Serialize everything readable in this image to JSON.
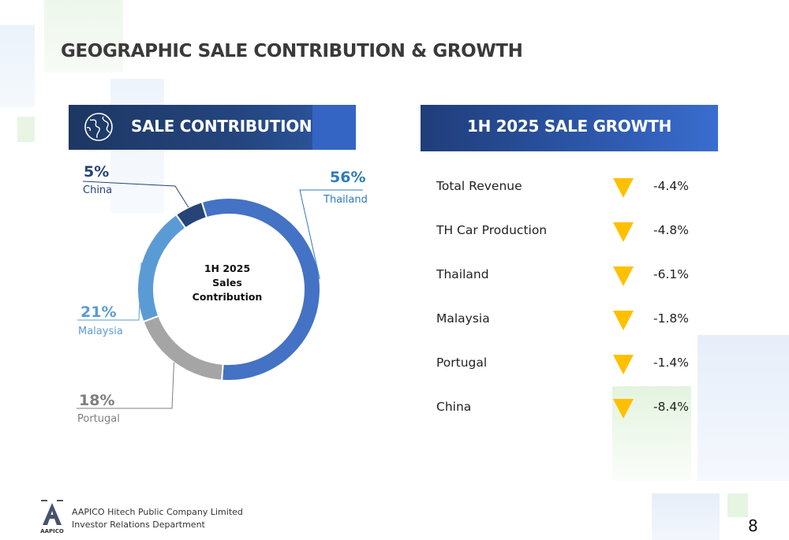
{
  "title": "GEOGRAPHIC SALE CONTRIBUTION & GROWTH",
  "left_panel": {
    "title": "SALE CONTRIBUTION",
    "icon": "globe-icon"
  },
  "right_panel": {
    "title": "1H 2025 SALE GROWTH"
  },
  "chart_data": {
    "type": "pie",
    "center_label": [
      "1H 2025",
      "Sales",
      "Contribution"
    ],
    "slices": [
      {
        "label": "Thailand",
        "pct_label": "56%",
        "value": 56,
        "color": "#4472c4"
      },
      {
        "label": "Portugal",
        "pct_label": "18%",
        "value": 18,
        "color": "#a5a5a5"
      },
      {
        "label": "Malaysia",
        "pct_label": "21%",
        "value": 21,
        "color": "#5b9bd5"
      },
      {
        "label": "China",
        "pct_label": "5%",
        "value": 5,
        "color": "#264478"
      }
    ],
    "label_colors": {
      "Thailand": "#2e7bbf",
      "Portugal": "#7f7f7f",
      "Malaysia": "#5b9bd5",
      "China": "#264478"
    }
  },
  "growth": [
    {
      "name": "Total Revenue",
      "value": "-4.4%",
      "direction": "down"
    },
    {
      "name": "TH Car Production",
      "value": "-4.8%",
      "direction": "down"
    },
    {
      "name": "Thailand",
      "value": "-6.1%",
      "direction": "down"
    },
    {
      "name": "Malaysia",
      "value": "-1.8%",
      "direction": "down"
    },
    {
      "name": "Portugal",
      "value": "-1.4%",
      "direction": "down"
    },
    {
      "name": "China",
      "value": "-8.4%",
      "direction": "down"
    }
  ],
  "arrow_color": "#ffc000",
  "footer": {
    "logo_text": "AAPICO",
    "company": "AAPICO Hitech Public Company Limited",
    "department": "Investor Relations Department",
    "page_number": "8"
  }
}
